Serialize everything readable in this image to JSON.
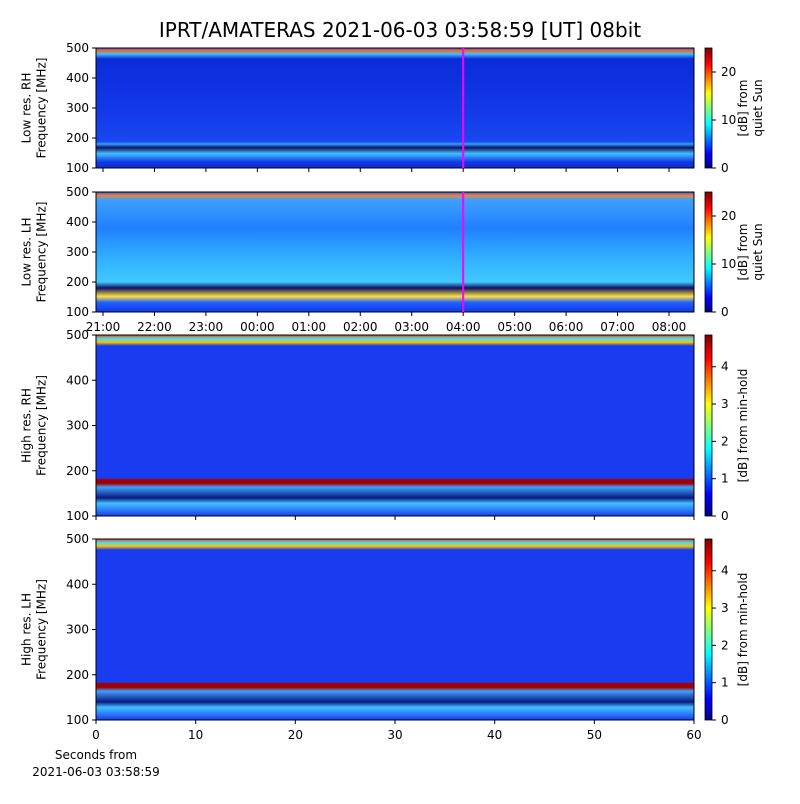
{
  "title": "IPRT/AMATERAS 2021-06-03 03:58:59 [UT]   08bit",
  "cursor": {
    "at": "04:00",
    "color": "#ff00ff"
  },
  "chart_data": [
    {
      "type": "heatmap",
      "ylabel": [
        "Low res. RH",
        "Frequency [MHz]"
      ],
      "ylim": [
        100,
        500
      ],
      "yticks": [
        100,
        200,
        300,
        400,
        500
      ],
      "colorbar": {
        "label": [
          "[dB] from",
          "quiet Sun"
        ],
        "lim": [
          0,
          25
        ],
        "ticks": [
          0,
          10,
          20
        ]
      }
    },
    {
      "type": "heatmap",
      "ylabel": [
        "Low res. LH",
        "Frequency [MHz]"
      ],
      "ylim": [
        100,
        500
      ],
      "yticks": [
        100,
        200,
        300,
        400,
        500
      ],
      "xticks": [
        "21:00",
        "22:00",
        "23:00",
        "00:00",
        "01:00",
        "02:00",
        "03:00",
        "04:00",
        "05:00",
        "06:00",
        "07:00",
        "08:00"
      ],
      "colorbar": {
        "label": [
          "[dB] from",
          "quiet Sun"
        ],
        "lim": [
          0,
          25
        ],
        "ticks": [
          0,
          10,
          20
        ]
      }
    },
    {
      "type": "heatmap",
      "ylabel": [
        "High res. RH",
        "Frequency [MHz]"
      ],
      "ylim": [
        100,
        500
      ],
      "yticks": [
        100,
        200,
        300,
        400,
        500
      ],
      "colorbar": {
        "label": [
          "[dB] from min-hold"
        ],
        "lim": [
          0,
          4.85
        ],
        "ticks": [
          0,
          1,
          2,
          3,
          4
        ]
      }
    },
    {
      "type": "heatmap",
      "ylabel": [
        "High res. LH",
        "Frequency [MHz]"
      ],
      "ylim": [
        100,
        500
      ],
      "yticks": [
        100,
        200,
        300,
        400,
        500
      ],
      "xlim": [
        0,
        60
      ],
      "xticks": [
        0,
        10,
        20,
        30,
        40,
        50,
        60
      ],
      "xlabel": [
        "Seconds from",
        "2021-06-03 03:58:59"
      ],
      "colorbar": {
        "label": [
          "[dB] from min-hold"
        ],
        "lim": [
          0,
          4.85
        ],
        "ticks": [
          0,
          1,
          2,
          3,
          4
        ]
      }
    }
  ]
}
